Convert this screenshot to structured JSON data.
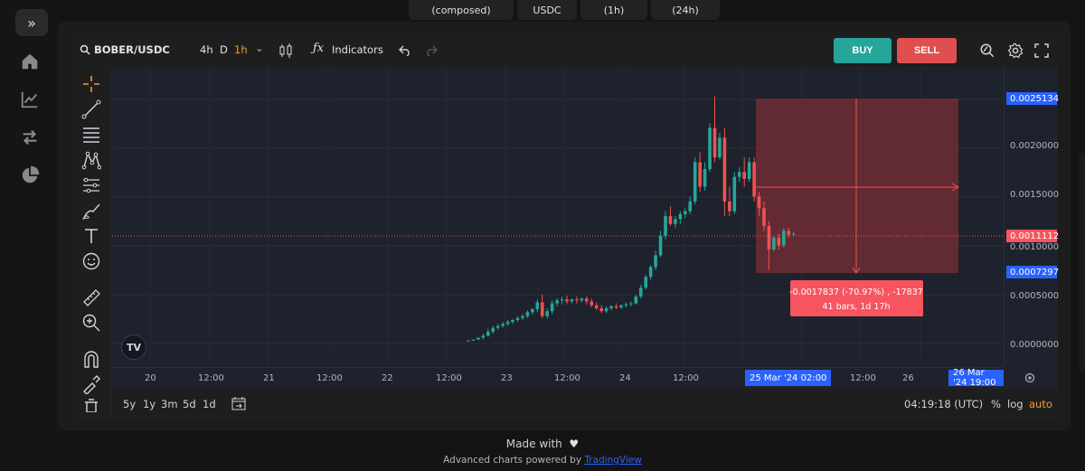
{
  "top_pills": [
    "(composed)",
    "USDC",
    "(1h)",
    "(24h)"
  ],
  "toolbar": {
    "symbol": "BOBER/USDC",
    "timeframes": [
      "4h",
      "D",
      "1h"
    ],
    "active_timeframe": "1h",
    "indicators_label": "Indicators",
    "buy_label": "BUY",
    "sell_label": "SELL"
  },
  "colors": {
    "up": "#26a69a",
    "down": "#ef5350",
    "accent": "#f39c34",
    "tag_blue": "#2962ff",
    "range_fill": "#7a2e36"
  },
  "chart_data": {
    "type": "candlestick",
    "price_ticks": [
      "0.0025134",
      "0.0020000",
      "0.0015000",
      "0.0011112",
      "0.0010000",
      "0.0007297",
      "0.0005000",
      "0.0000000"
    ],
    "price_tags": {
      "top": "0.0025134",
      "current": "0.0011112",
      "bottom": "0.0007297"
    },
    "time_ticks": [
      "20",
      "12:00",
      "21",
      "12:00",
      "22",
      "12:00",
      "23",
      "12:00",
      "24",
      "12:00",
      "12:00",
      "26"
    ],
    "time_tags": [
      "25 Mar '24   02:00",
      "26 Mar '24   19:00"
    ],
    "measure": {
      "line1": "-0.0017837 (-70.97%) , -17837",
      "line2": "41 bars, 1d 17h"
    },
    "candles": [
      [
        2e-05,
        3e-05,
        3e-05,
        2e-05
      ],
      [
        3e-05,
        4e-05,
        4e-05,
        3e-05
      ],
      [
        4e-05,
        6e-05,
        6e-05,
        4e-05
      ],
      [
        6e-05,
        0.0001,
        8e-05,
        4e-05
      ],
      [
        8e-05,
        0.00015,
        0.00012,
        7e-05
      ],
      [
        0.00012,
        0.00018,
        0.00016,
        0.0001
      ],
      [
        0.00016,
        0.0002,
        0.00018,
        0.00014
      ],
      [
        0.00018,
        0.00022,
        0.0002,
        0.00016
      ],
      [
        0.0002,
        0.00024,
        0.00022,
        0.00018
      ],
      [
        0.00022,
        0.00025,
        0.00024,
        0.0002
      ],
      [
        0.00024,
        0.00028,
        0.00026,
        0.00022
      ],
      [
        0.00026,
        0.0003,
        0.00028,
        0.00024
      ],
      [
        0.00028,
        0.00034,
        0.00032,
        0.00026
      ],
      [
        0.00032,
        0.00036,
        0.00035,
        0.0003
      ],
      [
        0.00035,
        0.00045,
        0.00042,
        0.00032
      ],
      [
        0.00042,
        0.0005,
        0.00028,
        0.00026
      ],
      [
        0.00028,
        0.00036,
        0.00033,
        0.00025
      ],
      [
        0.00033,
        0.00044,
        0.00041,
        0.0003
      ],
      [
        0.00041,
        0.00046,
        0.00044,
        0.00038
      ],
      [
        0.00044,
        0.00048,
        0.00045,
        0.0004
      ],
      [
        0.00045,
        0.00049,
        0.00043,
        0.0004
      ],
      [
        0.00043,
        0.00046,
        0.00045,
        0.00041
      ],
      [
        0.00045,
        0.00048,
        0.00044,
        0.00041
      ],
      [
        0.00044,
        0.00047,
        0.00046,
        0.00042
      ],
      [
        0.00046,
        0.00048,
        0.00043,
        0.0004
      ],
      [
        0.00043,
        0.00046,
        0.00039,
        0.00037
      ],
      [
        0.00039,
        0.00042,
        0.00036,
        0.00034
      ],
      [
        0.00036,
        0.00039,
        0.00033,
        0.00031
      ],
      [
        0.00033,
        0.00038,
        0.00036,
        0.00031
      ],
      [
        0.00036,
        0.00039,
        0.00038,
        0.00034
      ],
      [
        0.00038,
        0.00041,
        0.00037,
        0.00035
      ],
      [
        0.00037,
        0.0004,
        0.00039,
        0.00035
      ],
      [
        0.00039,
        0.00042,
        0.0004,
        0.00037
      ],
      [
        0.0004,
        0.00043,
        0.00041,
        0.00038
      ],
      [
        0.00041,
        0.0005,
        0.00048,
        0.0004
      ],
      [
        0.00048,
        0.0006,
        0.00057,
        0.00046
      ],
      [
        0.00057,
        0.0007,
        0.00068,
        0.00055
      ],
      [
        0.00068,
        0.0008,
        0.00078,
        0.00065
      ],
      [
        0.00078,
        0.00095,
        0.0009,
        0.00075
      ],
      [
        0.0009,
        0.00115,
        0.0011,
        0.00088
      ],
      [
        0.0011,
        0.00135,
        0.0013,
        0.00106
      ],
      [
        0.0013,
        0.0014,
        0.00122,
        0.0012
      ],
      [
        0.00122,
        0.0013,
        0.00127,
        0.00118
      ],
      [
        0.00127,
        0.00135,
        0.00132,
        0.00122
      ],
      [
        0.00132,
        0.00138,
        0.00135,
        0.00128
      ],
      [
        0.00135,
        0.0015,
        0.00145,
        0.00132
      ],
      [
        0.00145,
        0.0019,
        0.00185,
        0.00142
      ],
      [
        0.00185,
        0.00195,
        0.0016,
        0.00155
      ],
      [
        0.0016,
        0.00185,
        0.00178,
        0.00156
      ],
      [
        0.00178,
        0.00225,
        0.0022,
        0.00175
      ],
      [
        0.0022,
        0.00252,
        0.0019,
        0.00185
      ],
      [
        0.0019,
        0.00215,
        0.0021,
        0.00188
      ],
      [
        0.0021,
        0.0022,
        0.00145,
        0.0013
      ],
      [
        0.00145,
        0.0016,
        0.00135,
        0.0013
      ],
      [
        0.00135,
        0.00175,
        0.0017,
        0.00132
      ],
      [
        0.0017,
        0.0018,
        0.00175,
        0.00165
      ],
      [
        0.00175,
        0.0019,
        0.00168,
        0.0016
      ],
      [
        0.00168,
        0.0019,
        0.00185,
        0.00165
      ],
      [
        0.00185,
        0.0019,
        0.0015,
        0.00145
      ],
      [
        0.0015,
        0.00155,
        0.00138,
        0.0013
      ],
      [
        0.00138,
        0.00145,
        0.0012,
        0.00115
      ],
      [
        0.0012,
        0.00125,
        0.00096,
        0.00075
      ],
      [
        0.00096,
        0.0011,
        0.00108,
        0.00094
      ],
      [
        0.00108,
        0.00112,
        0.001,
        0.00096
      ],
      [
        0.001,
        0.00118,
        0.00115,
        0.00098
      ],
      [
        0.00115,
        0.00118,
        0.00111,
        0.00108
      ],
      [
        0.00111,
        0.00114,
        0.00112,
        0.00109
      ]
    ]
  },
  "bottombar": {
    "ranges": [
      "5y",
      "1y",
      "3m",
      "5d",
      "1d"
    ],
    "clock": "04:19:18 (UTC)",
    "pct_label": "%",
    "log_label": "log",
    "auto_label": "auto"
  },
  "footer": {
    "made_with": "Made with",
    "powered_text": "Advanced charts powered by",
    "powered_link": "TradingView"
  }
}
